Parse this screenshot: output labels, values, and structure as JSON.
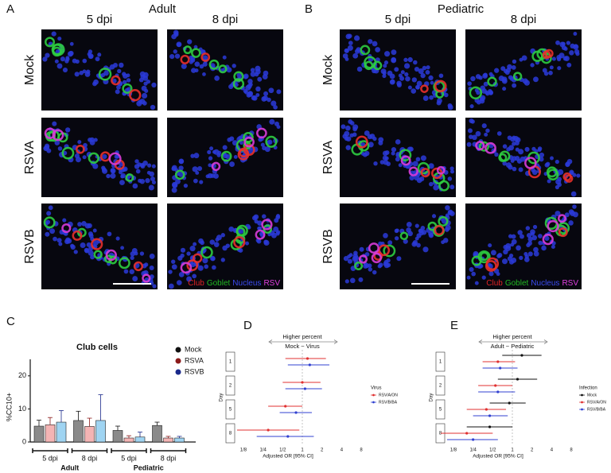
{
  "panel_A": {
    "letter": "A",
    "title": "Adult",
    "columns": [
      "5 dpi",
      "8 dpi"
    ],
    "rows": [
      "Mock",
      "RSVA",
      "RSVB"
    ]
  },
  "panel_B": {
    "letter": "B",
    "title": "Pediatric",
    "columns": [
      "5 dpi",
      "8 dpi"
    ],
    "rows": [
      "Mock",
      "RSVA",
      "RSVB"
    ]
  },
  "image_legend": [
    {
      "text": "Club",
      "color": "#e02424"
    },
    {
      "text": "Goblet",
      "color": "#22b822"
    },
    {
      "text": "Nucleus",
      "color": "#3b4cf0"
    },
    {
      "text": "RSV",
      "color": "#e040e0"
    }
  ],
  "chart_data": [
    {
      "type": "bar",
      "letter": "C",
      "title": "Club cells",
      "ylabel": "%CC10+",
      "ylim": [
        0,
        25
      ],
      "yticks": [
        0,
        10,
        20
      ],
      "categories": [
        "5 dpi",
        "8 dpi",
        "5 dpi",
        "8 dpi"
      ],
      "groups": [
        "Adult",
        "Pediatric"
      ],
      "series": [
        {
          "name": "Mock",
          "color": "#111111",
          "fill": "#8a8a8a",
          "values": [
            4.8,
            6.5,
            3.5,
            5
          ],
          "errors": [
            1.8,
            2.8,
            1.3,
            1
          ]
        },
        {
          "name": "RSVA",
          "color": "#8b1a1a",
          "fill": "#f4b4b4",
          "values": [
            5.2,
            4.7,
            1.2,
            1.2
          ],
          "errors": [
            2.2,
            2.5,
            0.7,
            0.5
          ]
        },
        {
          "name": "RSVB",
          "color": "#1a2a8b",
          "fill": "#9fd4f2",
          "values": [
            6,
            6.5,
            1.5,
            1.2
          ],
          "errors": [
            3.5,
            7.8,
            1.5,
            0.5
          ]
        }
      ]
    },
    {
      "type": "forest",
      "letter": "D",
      "header": "Higher percent",
      "comparison": "Mock ~ Virus",
      "xlabel": "Adjusted OR [95% CI]",
      "ylabel": "Day",
      "log": true,
      "reference": 1,
      "xlim": [
        0.1,
        10
      ],
      "xticks": [
        {
          "value": 0.125,
          "label": "1/8"
        },
        {
          "value": 0.25,
          "label": "1/4"
        },
        {
          "value": 0.5,
          "label": "1/2"
        },
        1,
        2,
        4,
        8
      ],
      "categories": [
        "1",
        "2",
        "5",
        "8"
      ],
      "legend_title": "Virus",
      "series": [
        {
          "name": "RSV/A/ON",
          "color": "#e03030",
          "values": [
            1.2,
            1.0,
            0.55,
            0.3
          ],
          "lower": [
            0.55,
            0.5,
            0.3,
            0.1
          ],
          "upper": [
            2.3,
            1.9,
            1.0,
            0.9
          ]
        },
        {
          "name": "RSV/B/BA",
          "color": "#3040d0",
          "values": [
            1.3,
            1.1,
            0.8,
            0.6
          ],
          "lower": [
            0.6,
            0.55,
            0.45,
            0.2
          ],
          "upper": [
            2.6,
            2.0,
            1.4,
            1.5
          ]
        }
      ]
    },
    {
      "type": "forest",
      "letter": "E",
      "header": "Higher percent",
      "comparison": "Adult ~ Pediatric",
      "xlabel": "Adjusted OR [95% CI]",
      "ylabel": "Day",
      "log": true,
      "reference": 1,
      "xlim": [
        0.1,
        10
      ],
      "xticks": [
        {
          "value": 0.125,
          "label": "1/8"
        },
        {
          "value": 0.25,
          "label": "1/4"
        },
        {
          "value": 0.5,
          "label": "1/2"
        },
        1,
        2,
        4,
        8
      ],
      "categories": [
        "1",
        "2",
        "5",
        "8"
      ],
      "legend_title": "Infection",
      "series": [
        {
          "name": "Mock",
          "color": "#111111",
          "values": [
            1.4,
            1.2,
            0.9,
            0.45
          ],
          "lower": [
            0.7,
            0.6,
            0.45,
            0.2
          ],
          "upper": [
            2.8,
            2.4,
            1.6,
            1.0
          ]
        },
        {
          "name": "RSV/A/ON",
          "color": "#e03030",
          "values": [
            0.6,
            0.55,
            0.4,
            0.2
          ],
          "lower": [
            0.35,
            0.3,
            0.2,
            0.08
          ],
          "upper": [
            1.1,
            1.0,
            0.8,
            0.5
          ]
        },
        {
          "name": "RSV/B/BA",
          "color": "#3040d0",
          "values": [
            0.65,
            0.6,
            0.45,
            0.25
          ],
          "lower": [
            0.35,
            0.3,
            0.25,
            0.1
          ],
          "upper": [
            1.2,
            1.1,
            0.85,
            0.6
          ]
        }
      ]
    }
  ]
}
